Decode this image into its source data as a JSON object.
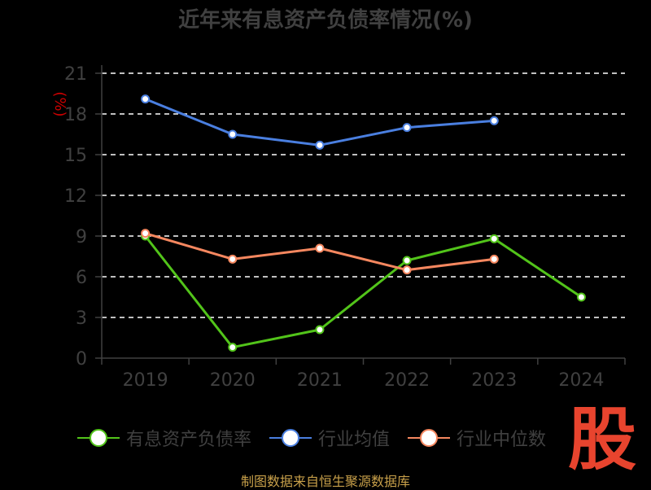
{
  "title": "近年来有息资产负债率情况(%)",
  "source": "制图数据来自恒生聚源数据库",
  "watermark": "股",
  "colors": {
    "background": "#000000",
    "axis": "#404040",
    "grid": "#ffffff",
    "ylabel": "#cc0000",
    "source": "#c8a04a",
    "watermark": "#e8442e"
  },
  "chart_data": {
    "type": "line",
    "title": "近年来有息资产负债率情况(%)",
    "xlabel": "",
    "ylabel": "(%)",
    "categories": [
      "2019",
      "2020",
      "2021",
      "2022",
      "2023",
      "2024"
    ],
    "ylim": [
      0,
      21
    ],
    "yticks": [
      0,
      3,
      6,
      9,
      12,
      15,
      18,
      21
    ],
    "grid": true,
    "legend_position": "bottom",
    "series": [
      {
        "name": "有息资产负债率",
        "color": "#52c41a",
        "values": [
          9.0,
          0.8,
          2.1,
          7.2,
          8.8,
          4.5
        ]
      },
      {
        "name": "行业均值",
        "color": "#4a7fe0",
        "values": [
          19.1,
          16.5,
          15.7,
          17.0,
          17.5,
          null
        ]
      },
      {
        "name": "行业中位数",
        "color": "#f5875f",
        "values": [
          9.2,
          7.3,
          8.1,
          6.5,
          7.3,
          null
        ]
      }
    ]
  }
}
